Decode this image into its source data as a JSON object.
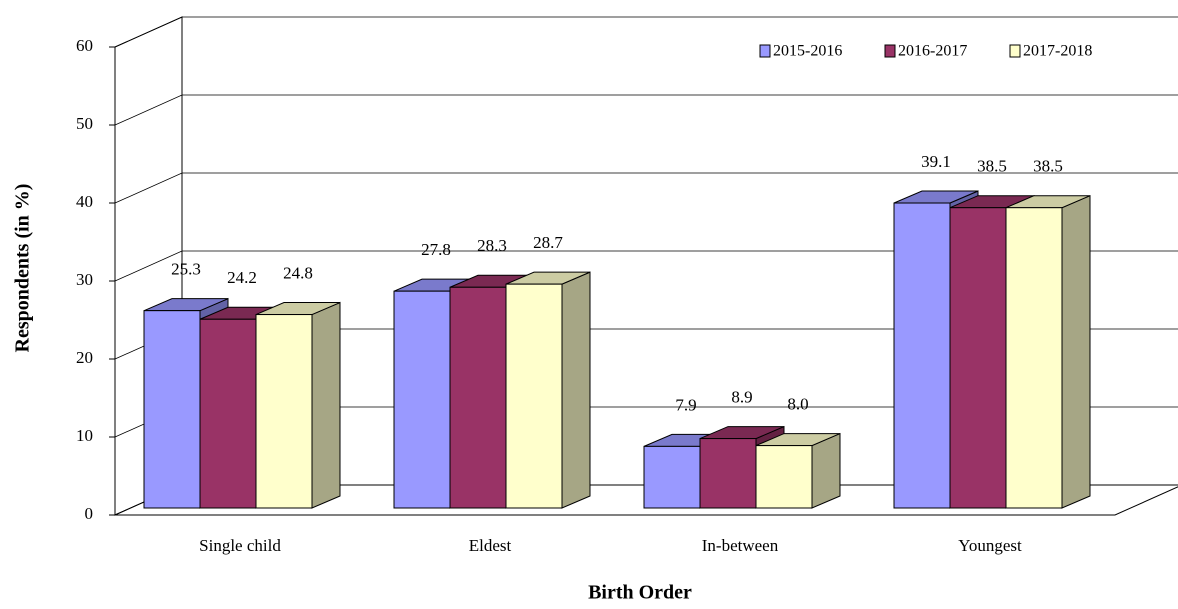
{
  "chart_data": {
    "type": "bar3d",
    "x_label": "Birth Order",
    "y_label": "Respondents (in %)",
    "categories": [
      "Single child",
      "Eldest",
      "In-between",
      "Youngest"
    ],
    "series": [
      {
        "name": "2015-2016",
        "color": "#9999ff",
        "values": [
          25.3,
          27.8,
          7.9,
          39.1
        ],
        "value_labels": [
          "25.3",
          "27.8",
          "7.9",
          "39.1"
        ]
      },
      {
        "name": "2016-2017",
        "color": "#993366",
        "values": [
          24.2,
          28.3,
          8.9,
          38.5
        ],
        "value_labels": [
          "24.2",
          "28.3",
          "8.9",
          "38.5"
        ]
      },
      {
        "name": "2017-2018",
        "color": "#ffffcc",
        "values": [
          24.8,
          28.7,
          8.0,
          38.5
        ],
        "value_labels": [
          "24.8",
          "28.7",
          "8.0",
          "38.5"
        ]
      }
    ],
    "ylim": [
      0,
      60
    ],
    "yticks": [
      0,
      10,
      20,
      30,
      40,
      50,
      60
    ],
    "grid": true,
    "legend": "top-right"
  }
}
